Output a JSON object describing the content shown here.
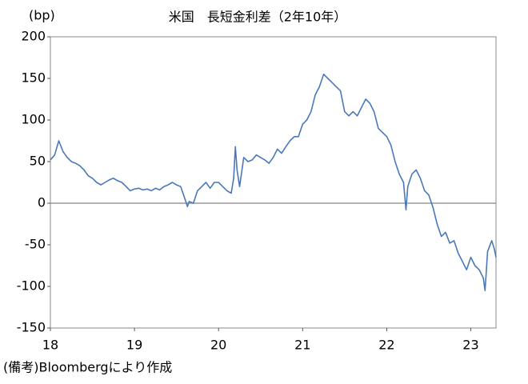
{
  "chart_data": {
    "type": "line",
    "title": "米国　長短金利差（2年10年）",
    "y_label": "(bp)",
    "note": "(備考)Bloombergにより作成",
    "xlim": [
      18,
      23.3
    ],
    "xticks": [
      18,
      19,
      20,
      21,
      22,
      23
    ],
    "ylim": [
      -150,
      200
    ],
    "yticks": [
      -150,
      -100,
      -50,
      0,
      50,
      100,
      150,
      200
    ],
    "zero_line": true,
    "x": [
      18.0,
      18.05,
      18.1,
      18.15,
      18.2,
      18.25,
      18.3,
      18.35,
      18.4,
      18.45,
      18.5,
      18.55,
      18.6,
      18.65,
      18.7,
      18.75,
      18.8,
      18.85,
      18.9,
      18.95,
      19.0,
      19.05,
      19.1,
      19.15,
      19.2,
      19.25,
      19.3,
      19.35,
      19.4,
      19.45,
      19.5,
      19.55,
      19.6,
      19.63,
      19.65,
      19.7,
      19.75,
      19.8,
      19.85,
      19.9,
      19.95,
      20.0,
      20.05,
      20.1,
      20.15,
      20.18,
      20.2,
      20.22,
      20.25,
      20.3,
      20.35,
      20.4,
      20.45,
      20.5,
      20.55,
      20.6,
      20.65,
      20.7,
      20.75,
      20.8,
      20.85,
      20.9,
      20.95,
      21.0,
      21.05,
      21.1,
      21.15,
      21.2,
      21.25,
      21.3,
      21.35,
      21.4,
      21.45,
      21.5,
      21.55,
      21.6,
      21.65,
      21.7,
      21.75,
      21.8,
      21.85,
      21.9,
      21.95,
      22.0,
      22.05,
      22.1,
      22.15,
      22.2,
      22.23,
      22.25,
      22.3,
      22.35,
      22.4,
      22.45,
      22.5,
      22.55,
      22.6,
      22.65,
      22.7,
      22.75,
      22.8,
      22.85,
      22.9,
      22.95,
      23.0,
      23.05,
      23.1,
      23.15,
      23.17,
      23.2,
      23.25,
      23.28,
      23.3
    ],
    "series": [
      {
        "color": "#4a78b8",
        "values": [
          52,
          58,
          75,
          62,
          55,
          50,
          48,
          45,
          40,
          33,
          30,
          25,
          22,
          25,
          28,
          30,
          27,
          25,
          20,
          15,
          17,
          18,
          16,
          17,
          15,
          18,
          16,
          20,
          22,
          25,
          22,
          20,
          5,
          -4,
          2,
          0,
          15,
          20,
          25,
          18,
          25,
          25,
          20,
          15,
          12,
          30,
          68,
          40,
          20,
          55,
          50,
          52,
          58,
          55,
          52,
          48,
          55,
          65,
          60,
          68,
          75,
          80,
          80,
          95,
          100,
          110,
          130,
          140,
          155,
          150,
          145,
          140,
          135,
          110,
          105,
          110,
          105,
          115,
          125,
          120,
          110,
          90,
          85,
          80,
          70,
          50,
          35,
          25,
          -8,
          20,
          35,
          40,
          30,
          15,
          10,
          -5,
          -25,
          -40,
          -35,
          -48,
          -45,
          -60,
          -70,
          -80,
          -65,
          -75,
          -80,
          -90,
          -105,
          -58,
          -45,
          -55,
          -65
        ]
      }
    ]
  }
}
